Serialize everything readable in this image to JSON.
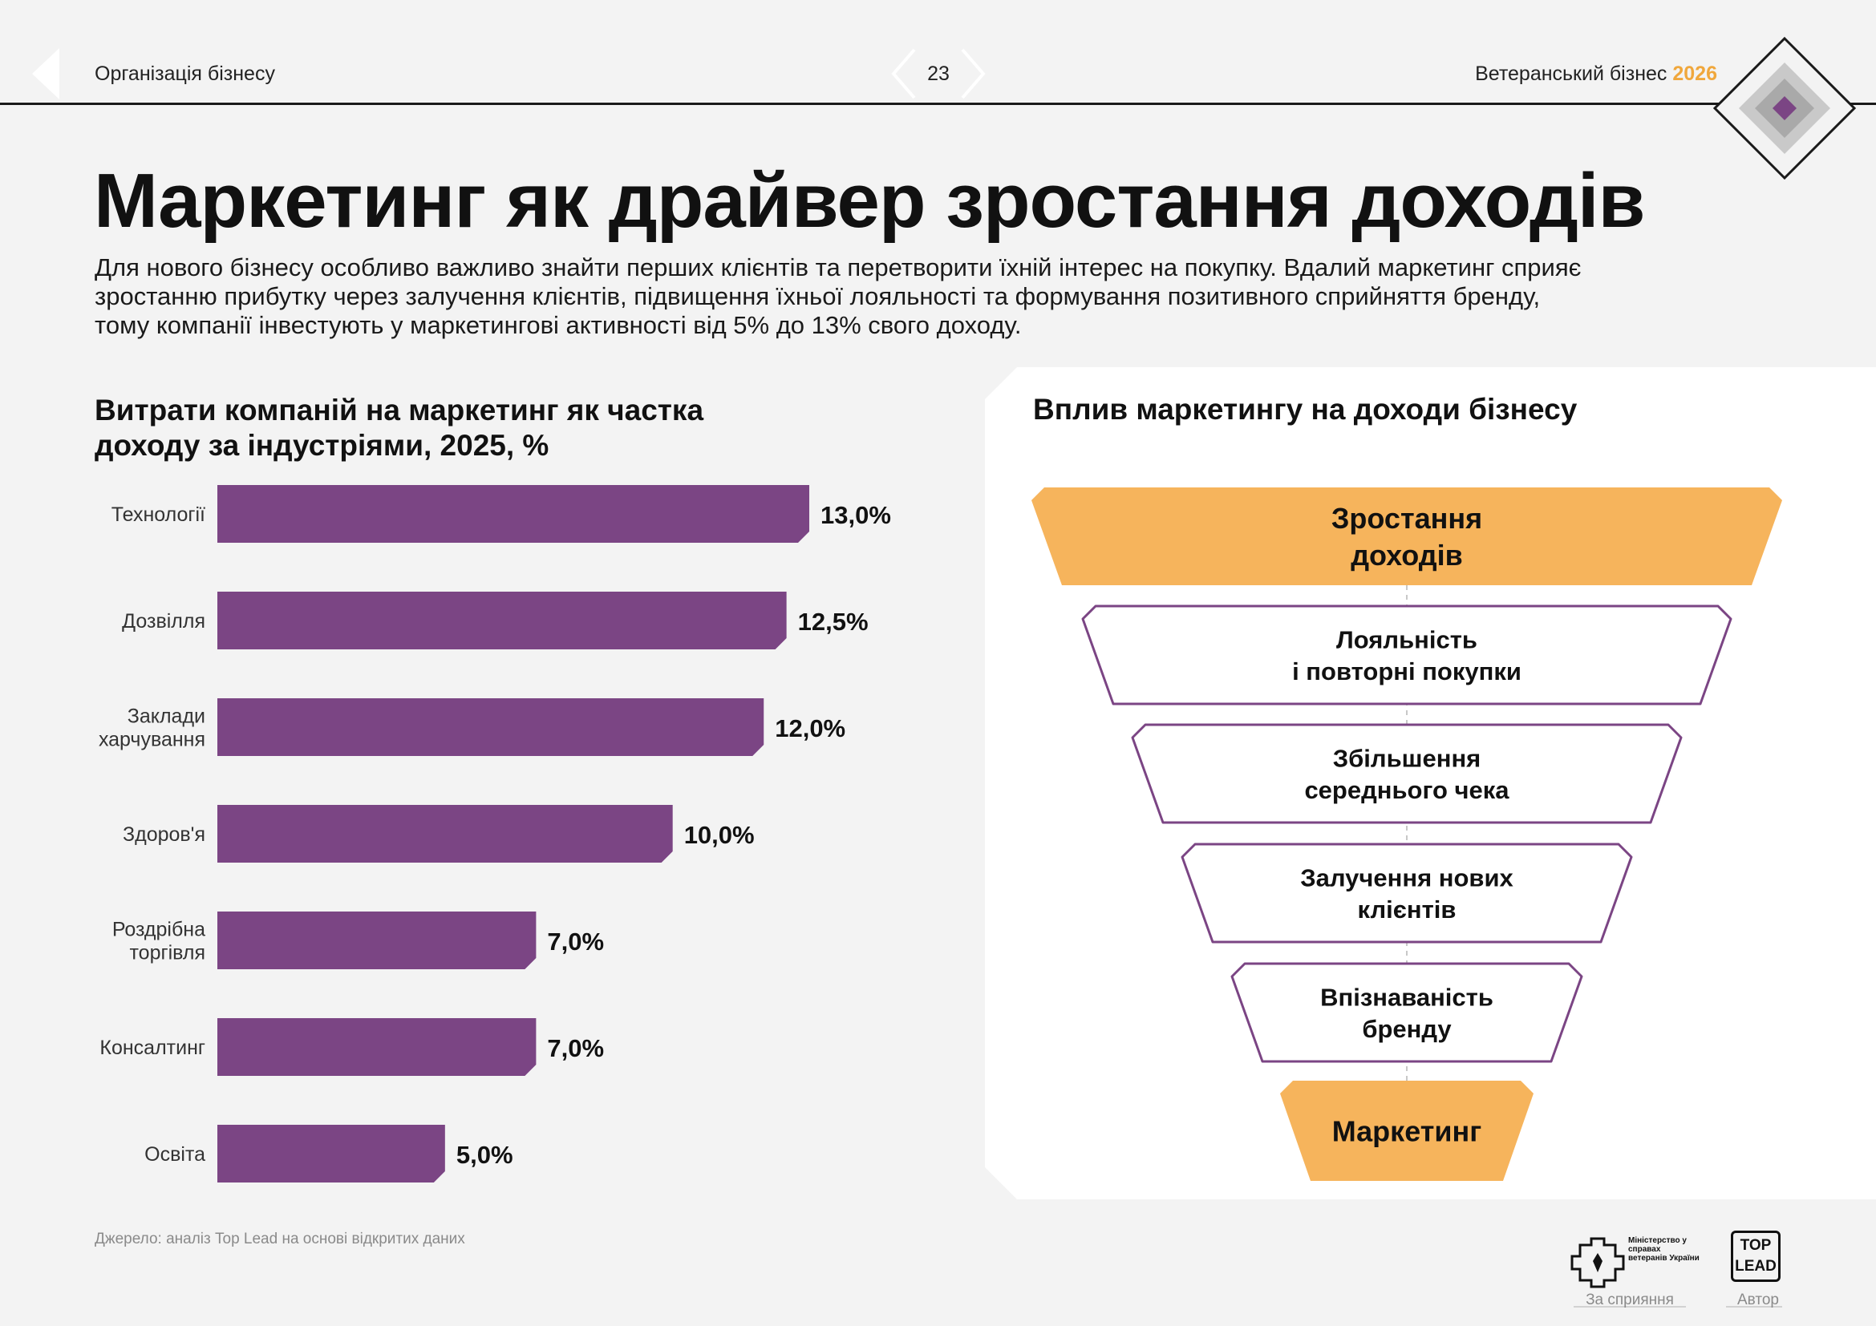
{
  "header": {
    "section": "Організація бізнесу",
    "page_number": "23",
    "report_title": "Ветеранський бізнес",
    "report_year": "2026"
  },
  "title": "Маркетинг як драйвер зростання доходів",
  "intro": {
    "line1": "Для нового бізнесу особливо важливо знайти перших клієнтів та перетворити їхній інтерес на покупку. Вдалий маркетинг сприяє",
    "line2": "зростанню прибутку через залучення клієнтів, підвищення їхньої лояльності та формування позитивного сприйняття бренду,",
    "line3": "тому компанії інвестують у маркетингові активності від 5% до 13% свого доходу."
  },
  "left_chart": {
    "title_line1": "Витрати компаній на маркетинг як частка",
    "title_line2": "доходу за індустріями, 2025, %"
  },
  "chart_data": {
    "type": "bar",
    "orientation": "horizontal",
    "title": "Витрати компаній на маркетинг як частка доходу за індустріями, 2025, %",
    "categories": [
      [
        "Технології"
      ],
      [
        "Дозвілля"
      ],
      [
        "Заклади",
        "харчування"
      ],
      [
        "Здоров'я"
      ],
      [
        "Роздрібна",
        "торгівля"
      ],
      [
        "Консалтинг"
      ],
      [
        "Освіта"
      ]
    ],
    "values": [
      13.0,
      12.5,
      12.0,
      10.0,
      7.0,
      7.0,
      5.0
    ],
    "labels": [
      "13,0%",
      "12,5%",
      "12,0%",
      "10,0%",
      "7,0%",
      "7,0%",
      "5,0%"
    ],
    "xlim": [
      0,
      13.0
    ],
    "bar_color": "#7b4584",
    "grid": false
  },
  "funnel": {
    "title": "Вплив маркетингу на доходи бізнесу",
    "levels": [
      {
        "lines": [
          "Зростання",
          "доходів"
        ],
        "style": "filled"
      },
      {
        "lines": [
          "Лояльність",
          "і повторні покупки"
        ],
        "style": "outline"
      },
      {
        "lines": [
          "Збільшення",
          "середнього чека"
        ],
        "style": "outline"
      },
      {
        "lines": [
          "Залучення нових",
          "клієнтів"
        ],
        "style": "outline"
      },
      {
        "lines": [
          "Впізнаваність",
          "бренду"
        ],
        "style": "outline"
      },
      {
        "lines": [
          "Маркетинг"
        ],
        "style": "filled"
      }
    ],
    "accent_color": "#f6b45c",
    "outline_color": "#7b4584"
  },
  "footer": {
    "source": "Джерело: аналіз Top Lead на основі відкритих даних",
    "ministry_name": "Міністерство у справах ветеранів України",
    "support_caption": "За сприяння",
    "author_logo_line1": "TOP",
    "author_logo_line2": "LEAD",
    "author_caption": "Автор"
  }
}
